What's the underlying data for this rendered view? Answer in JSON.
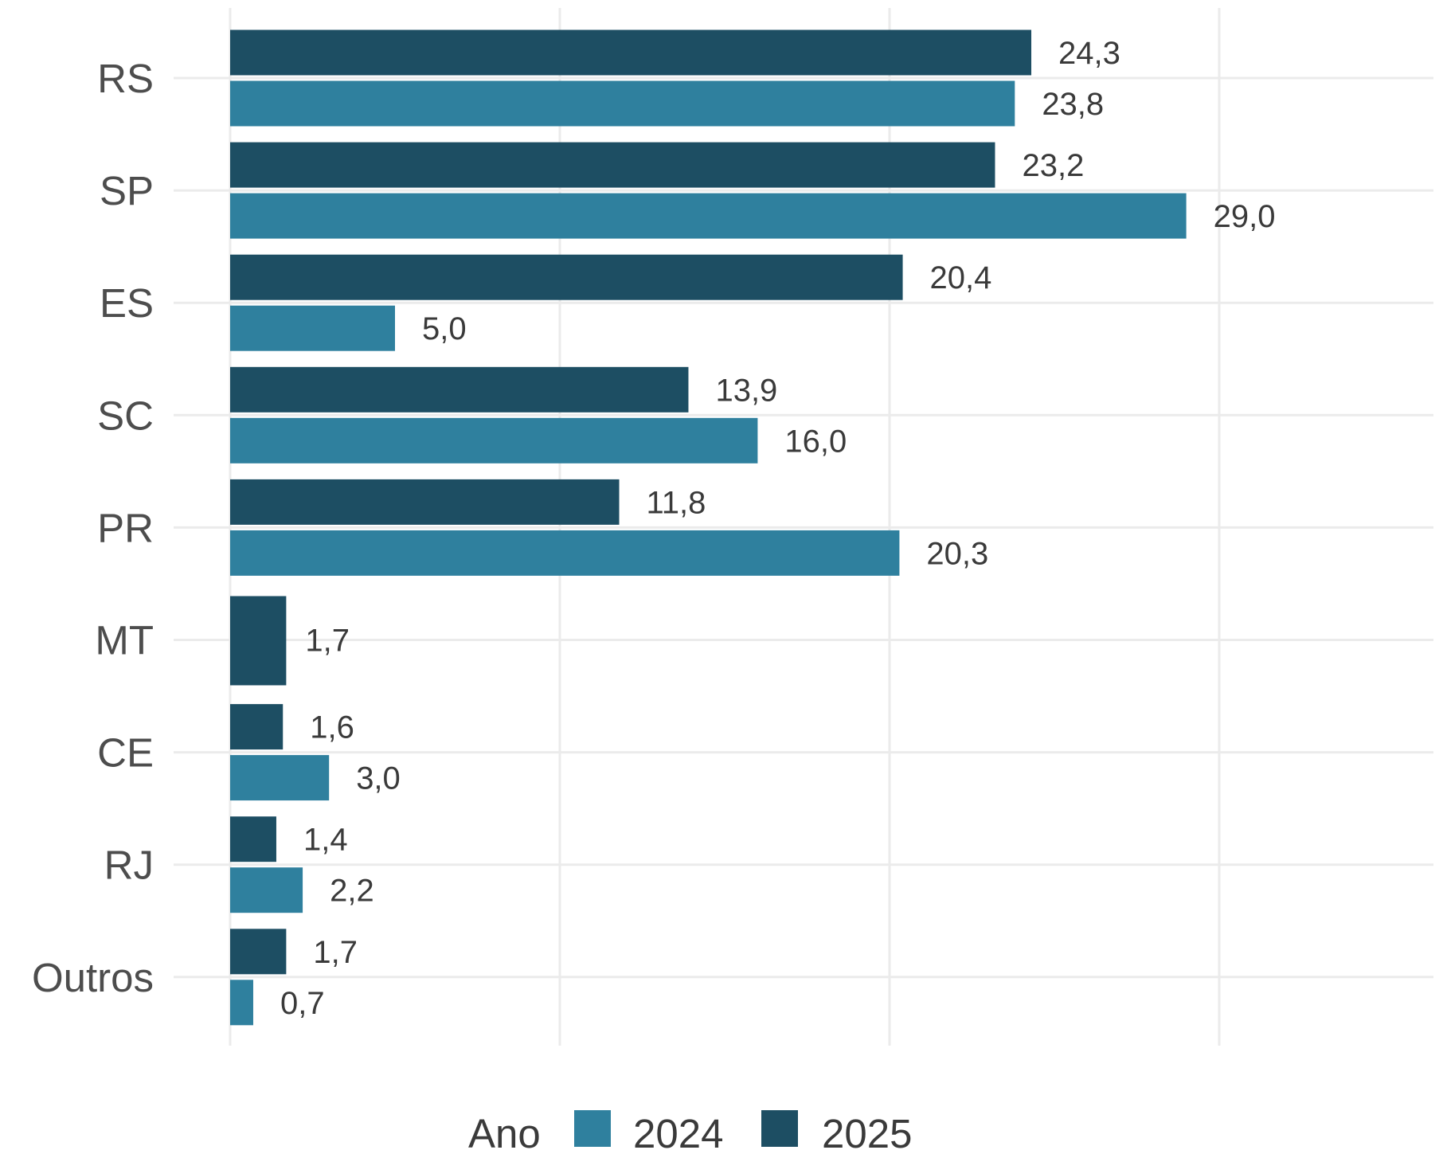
{
  "chart_data": {
    "type": "bar",
    "orientation": "horizontal",
    "categories": [
      "RS",
      "SP",
      "ES",
      "SC",
      "PR",
      "MT",
      "CE",
      "RJ",
      "Outros"
    ],
    "series": [
      {
        "name": "2025",
        "color": "#1d4e63",
        "values": [
          24.3,
          23.2,
          20.4,
          13.9,
          11.8,
          1.7,
          1.6,
          1.4,
          1.7
        ],
        "labels": [
          "24,3",
          "23,2",
          "20,4",
          "13,9",
          "11,8",
          "1,7",
          "1,6",
          "1,4",
          "1,7"
        ]
      },
      {
        "name": "2024",
        "color": "#2f809e",
        "values": [
          23.8,
          29.0,
          5.0,
          16.0,
          20.3,
          null,
          3.0,
          2.2,
          0.7
        ],
        "labels": [
          "23,8",
          "29,0",
          "5,0",
          "16,0",
          "20,3",
          "",
          "3,0",
          "2,2",
          "0,7"
        ]
      }
    ],
    "xlim": [
      0,
      36
    ],
    "x_gridlines": [
      0,
      10,
      20,
      30
    ],
    "grid": true,
    "x_tick_labels_shown": false,
    "legend": {
      "title": "Ano",
      "position": "bottom",
      "items": [
        "2024",
        "2025"
      ]
    }
  }
}
